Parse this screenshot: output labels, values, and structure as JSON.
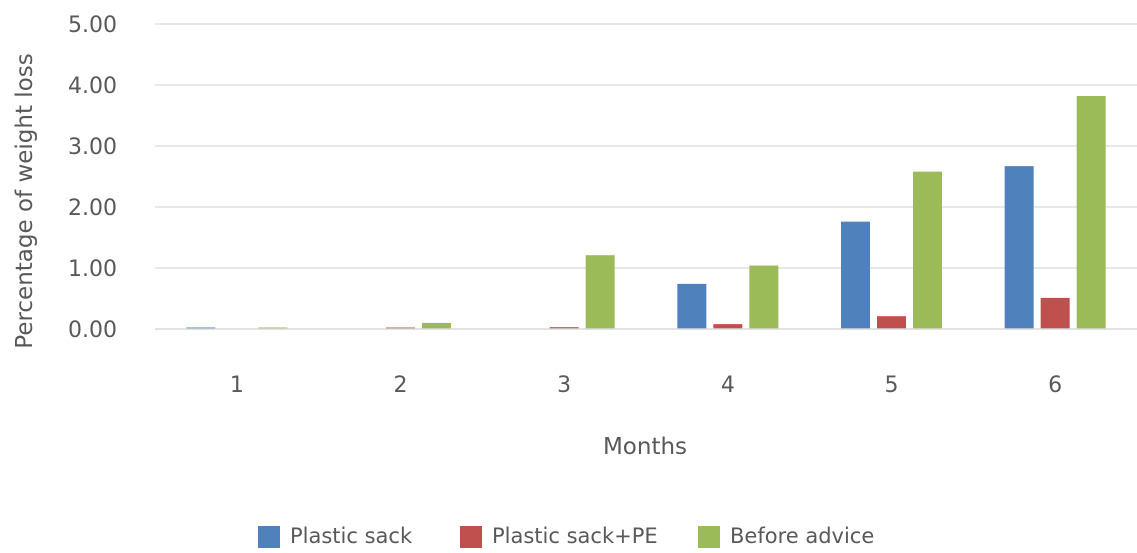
{
  "chart_data": {
    "type": "bar",
    "title": "",
    "xlabel": "Months",
    "ylabel": "Percentage of weight loss",
    "categories": [
      "1",
      "2",
      "3",
      "4",
      "5",
      "6"
    ],
    "ylim": [
      0,
      5
    ],
    "yticks": [
      "0.00",
      "1.00",
      "2.00",
      "3.00",
      "4.00",
      "5.00"
    ],
    "grid": true,
    "legend_position": "bottom",
    "series": [
      {
        "name": "Plastic sack",
        "color": "#4F81BD",
        "values": [
          0.01,
          0.0,
          0.0,
          0.74,
          1.76,
          2.67
        ]
      },
      {
        "name": "Plastic sack+PE",
        "color": "#C0504D",
        "values": [
          0.0,
          0.01,
          0.03,
          0.08,
          0.21,
          0.51
        ]
      },
      {
        "name": "Before advice",
        "color": "#9BBB59",
        "values": [
          0.01,
          0.1,
          1.21,
          1.04,
          2.58,
          3.82
        ]
      }
    ]
  }
}
